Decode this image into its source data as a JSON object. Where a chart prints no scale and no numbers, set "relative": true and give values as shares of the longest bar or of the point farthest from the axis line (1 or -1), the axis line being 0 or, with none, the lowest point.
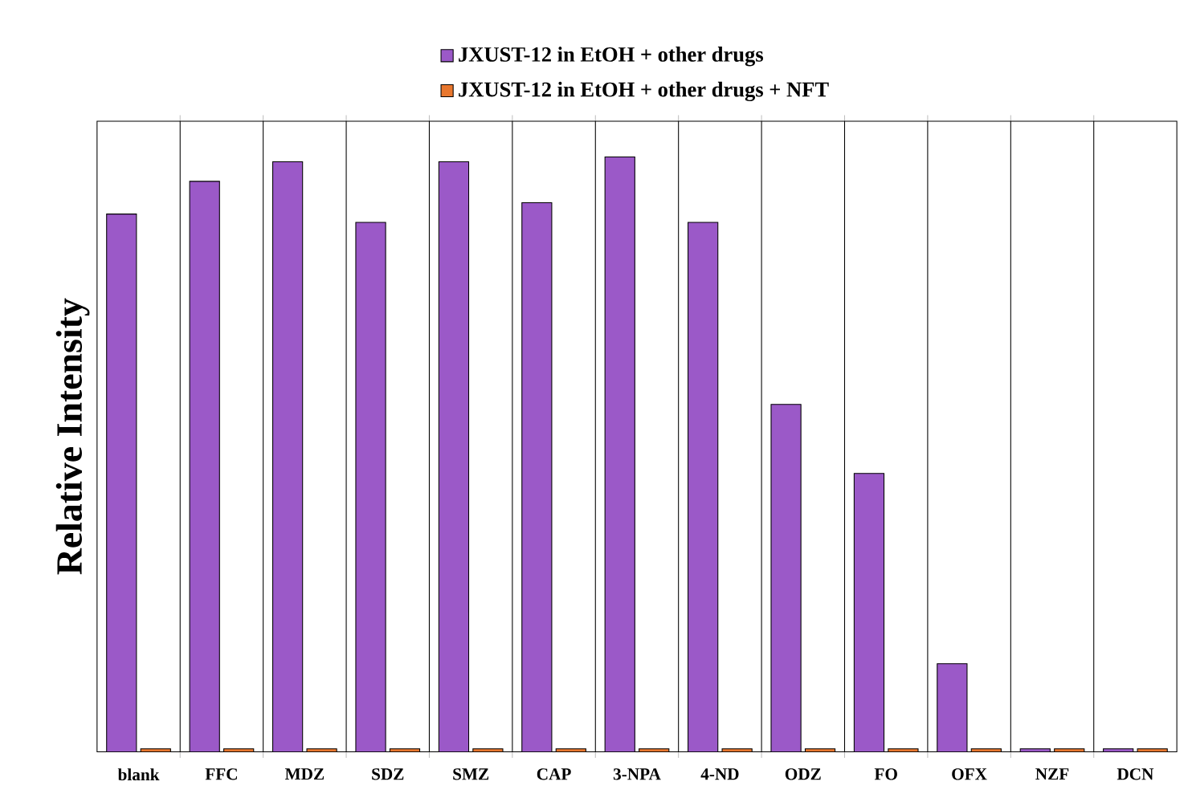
{
  "chart_data": {
    "type": "bar",
    "relative": true,
    "ylabel": "Relative Intensity",
    "legend": "top",
    "grid": "x",
    "categories": [
      "blank",
      "FFC",
      "MDZ",
      "SDZ",
      "SMZ",
      "CAP",
      "3-NPA",
      "4-ND",
      "ODZ",
      "FO",
      "OFX",
      "NZF",
      "DCN"
    ],
    "series": [
      {
        "name": "JXUST-12 in EtOH + other drugs",
        "color": "#9b59c8",
        "values": [
          0.904,
          0.959,
          0.992,
          0.89,
          0.992,
          0.923,
          1,
          0.89,
          0.584,
          0.468,
          0.148,
          0.005,
          0.005
        ]
      },
      {
        "name": "JXUST-12 in EtOH + other drugs + NFT",
        "color": "#e8772e",
        "values": [
          0.005,
          0.005,
          0.005,
          0.005,
          0.005,
          0.005,
          0.005,
          0.005,
          0.005,
          0.005,
          0.005,
          0.005,
          0.005
        ]
      }
    ]
  }
}
